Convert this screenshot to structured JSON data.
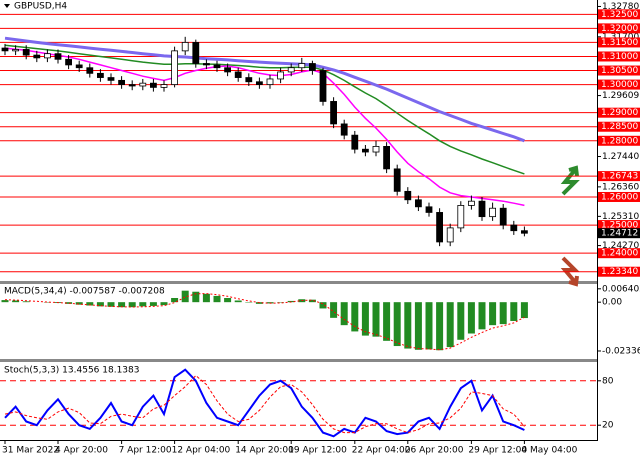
{
  "chart_data": [
    {
      "type": "candlestick",
      "title": "GBPUSD,H4",
      "categories": [
        "31 Mar 2022",
        null,
        null,
        null,
        null,
        "4 Apr 20:00",
        null,
        null,
        null,
        null,
        null,
        "7 Apr 12:00",
        null,
        null,
        null,
        null,
        "12 Apr 04:00",
        null,
        null,
        null,
        null,
        null,
        "14 Apr 20:00",
        null,
        null,
        null,
        null,
        "19 Apr 12:00",
        null,
        null,
        null,
        null,
        null,
        "22 Apr 04:00",
        null,
        null,
        null,
        null,
        "26 Apr 20:00",
        null,
        null,
        null,
        null,
        null,
        "29 Apr 12:00",
        null,
        null,
        null,
        null,
        "4 May 04:00"
      ],
      "open": [
        1.313,
        1.312,
        1.3125,
        1.3105,
        1.3095,
        1.311,
        1.309,
        1.307,
        1.306,
        1.304,
        1.3025,
        1.3015,
        1.3,
        1.2995,
        1.3005,
        1.299,
        1.3,
        1.312,
        1.315,
        1.3075,
        1.307,
        1.306,
        1.3045,
        1.3025,
        1.301,
        1.3,
        1.302,
        1.3045,
        1.306,
        1.3075,
        1.305,
        1.294,
        1.286,
        1.282,
        1.277,
        1.276,
        1.278,
        1.27,
        1.262,
        1.259,
        1.2565,
        1.2545,
        1.244,
        1.249,
        1.257,
        1.2585,
        1.253,
        1.256,
        1.25,
        1.248
      ],
      "high": [
        1.3145,
        1.314,
        1.314,
        1.312,
        1.3125,
        1.3125,
        1.3105,
        1.3085,
        1.3075,
        1.3055,
        1.304,
        1.303,
        1.3015,
        1.302,
        1.302,
        1.3015,
        1.3135,
        1.317,
        1.316,
        1.309,
        1.3085,
        1.3075,
        1.306,
        1.304,
        1.3025,
        1.3035,
        1.306,
        1.3075,
        1.3095,
        1.3085,
        1.306,
        1.2955,
        1.2875,
        1.2835,
        1.2785,
        1.28,
        1.2795,
        1.2715,
        1.2635,
        1.2605,
        1.258,
        1.256,
        1.2505,
        1.2585,
        1.2605,
        1.26,
        1.258,
        1.2575,
        1.2515,
        1.2495
      ],
      "low": [
        1.3105,
        1.3105,
        1.309,
        1.308,
        1.308,
        1.3075,
        1.3055,
        1.3045,
        1.3025,
        1.301,
        1.3,
        1.2985,
        1.298,
        1.298,
        1.2975,
        1.2975,
        1.299,
        1.3105,
        1.306,
        1.3055,
        1.3045,
        1.303,
        1.301,
        1.2995,
        1.2985,
        1.2985,
        1.3005,
        1.303,
        1.3045,
        1.3035,
        1.2925,
        1.2845,
        1.2805,
        1.2755,
        1.2745,
        1.2745,
        1.2685,
        1.2605,
        1.2575,
        1.255,
        1.253,
        1.2425,
        1.2425,
        1.2475,
        1.2555,
        1.2515,
        1.2515,
        1.2485,
        1.2465,
        1.246
      ],
      "close": [
        1.312,
        1.3125,
        1.3105,
        1.3095,
        1.311,
        1.309,
        1.307,
        1.306,
        1.304,
        1.3025,
        1.3015,
        1.3,
        1.2995,
        1.3005,
        1.299,
        1.3,
        1.312,
        1.315,
        1.3075,
        1.307,
        1.306,
        1.3045,
        1.3025,
        1.301,
        1.3,
        1.302,
        1.3045,
        1.306,
        1.3075,
        1.305,
        1.294,
        1.286,
        1.282,
        1.277,
        1.276,
        1.278,
        1.27,
        1.262,
        1.259,
        1.2565,
        1.2545,
        1.244,
        1.249,
        1.257,
        1.2585,
        1.253,
        1.256,
        1.25,
        1.248,
        1.2471
      ],
      "up_color": "#ffffff",
      "down_color": "#000000",
      "series": [
        {
          "color": "#7b68ee",
          "values": [
            1.3165,
            1.316,
            1.3155,
            1.315,
            1.3146,
            1.3142,
            1.3138,
            1.3134,
            1.313,
            1.3126,
            1.3122,
            1.3118,
            1.3114,
            1.311,
            1.3106,
            1.3102,
            1.31,
            1.3098,
            1.3095,
            1.3092,
            1.309,
            1.3088,
            1.3085,
            1.3082,
            1.308,
            1.3078,
            1.3076,
            1.3074,
            1.3072,
            1.307,
            1.3062,
            1.3052,
            1.304,
            1.3026,
            1.3012,
            1.2998,
            1.2984,
            1.2968,
            1.2952,
            1.2936,
            1.292,
            1.2904,
            1.289,
            1.2876,
            1.2862,
            1.285,
            1.2838,
            1.2826,
            1.2814,
            1.28
          ]
        },
        {
          "color": "#228b22",
          "values": [
            1.314,
            1.3136,
            1.3132,
            1.3128,
            1.3124,
            1.312,
            1.3115,
            1.311,
            1.3105,
            1.31,
            1.3095,
            1.309,
            1.3085,
            1.308,
            1.3076,
            1.3072,
            1.3072,
            1.3074,
            1.3074,
            1.3073,
            1.3072,
            1.307,
            1.3068,
            1.3065,
            1.3062,
            1.306,
            1.306,
            1.3061,
            1.3062,
            1.3062,
            1.3052,
            1.3035,
            1.3015,
            1.2992,
            1.297,
            1.295,
            1.2925,
            1.2898,
            1.2872,
            1.2848,
            1.2825,
            1.28,
            1.278,
            1.2764,
            1.275,
            1.2735,
            1.2722,
            1.2708,
            1.2695,
            1.2682
          ]
        },
        {
          "color": "#ff00ff",
          "values": [
            1.313,
            1.3126,
            1.3122,
            1.3116,
            1.311,
            1.3104,
            1.3098,
            1.309,
            1.308,
            1.307,
            1.306,
            1.305,
            1.304,
            1.303,
            1.3022,
            1.3015,
            1.3025,
            1.304,
            1.305,
            1.3058,
            1.3064,
            1.3066,
            1.306,
            1.305,
            1.304,
            1.3034,
            1.3032,
            1.3036,
            1.3045,
            1.3052,
            1.304,
            1.3005,
            1.2965,
            1.292,
            1.288,
            1.2845,
            1.2805,
            1.276,
            1.272,
            1.269,
            1.2665,
            1.2635,
            1.2615,
            1.2605,
            1.26,
            1.2595,
            1.259,
            1.2585,
            1.2578,
            1.257
          ]
        }
      ],
      "ylim": [
        1.2301,
        1.3301
      ],
      "yticks": [
        {
          "value": 1.3278,
          "label": "1.32780"
        },
        {
          "value": 1.317,
          "label": "1.31700"
        },
        {
          "value": 1.29609,
          "label": "1.29609"
        },
        {
          "value": 1.2744,
          "label": "1.27440"
        },
        {
          "value": 1.2636,
          "label": "1.26360"
        },
        {
          "value": 1.2531,
          "label": "1.25310"
        },
        {
          "value": 1.2427,
          "label": "1.24270"
        }
      ],
      "level_color": "#ff0000",
      "levels": [
        {
          "value": 1.325,
          "label": "1.32500"
        },
        {
          "value": 1.32,
          "label": "1.32000"
        },
        {
          "value": 1.315,
          "label": "1.31500"
        },
        {
          "value": 1.31,
          "label": "1.31000"
        },
        {
          "value": 1.305,
          "label": "1.30500"
        },
        {
          "value": 1.3,
          "label": "1.30000"
        },
        {
          "value": 1.29,
          "label": "1.29000"
        },
        {
          "value": 1.285,
          "label": "1.28500"
        },
        {
          "value": 1.28,
          "label": "1.28000"
        },
        {
          "value": 1.26743,
          "label": "1.26743"
        },
        {
          "value": 1.26,
          "label": "1.26000"
        },
        {
          "value": 1.25,
          "label": "1.25000"
        },
        {
          "value": 1.24,
          "label": "1.24000"
        },
        {
          "value": 1.2334,
          "label": "1.23340"
        }
      ],
      "current_price": {
        "value": 1.24712,
        "label": "1.24712"
      }
    },
    {
      "type": "macd",
      "title": "MACD(5,34,4) -0.007587 -0.007208",
      "ylim": [
        -0.0272,
        0.0087
      ],
      "yticks": [
        0.006402,
        {
          "value": 0,
          "label": "0.00"
        },
        -0.02336
      ],
      "series": [
        {
          "type": "bar",
          "color": "#228b22",
          "values": [
            0.001,
            0.0008,
            0.0004,
            0.0,
            -0.0002,
            -0.0004,
            -0.0008,
            -0.0012,
            -0.0016,
            -0.002,
            -0.0022,
            -0.0024,
            -0.0024,
            -0.002,
            -0.0018,
            -0.0014,
            0.002,
            0.0055,
            0.005,
            0.004,
            0.003,
            0.002,
            0.0008,
            -0.0002,
            -0.0008,
            -0.0006,
            -0.0002,
            0.0006,
            0.0014,
            0.0012,
            -0.003,
            -0.0075,
            -0.011,
            -0.014,
            -0.016,
            -0.0165,
            -0.0185,
            -0.021,
            -0.0222,
            -0.0228,
            -0.0226,
            -0.023,
            -0.0215,
            -0.018,
            -0.015,
            -0.013,
            -0.011,
            -0.0105,
            -0.009,
            -0.0076
          ]
        },
        {
          "type": "line",
          "color": "#ff0000",
          "dash": true,
          "values": [
            0.0012,
            0.001,
            0.0007,
            0.0004,
            0.0001,
            -0.0002,
            -0.0005,
            -0.0009,
            -0.0013,
            -0.0017,
            -0.002,
            -0.0022,
            -0.0023,
            -0.0022,
            -0.002,
            -0.0017,
            -0.0002,
            0.0025,
            0.004,
            0.0041,
            0.0036,
            0.0028,
            0.0016,
            0.0006,
            -0.0002,
            -0.0005,
            -0.0004,
            0.0001,
            0.0008,
            0.001,
            -0.0008,
            -0.0045,
            -0.0083,
            -0.0116,
            -0.0142,
            -0.0155,
            -0.0172,
            -0.0195,
            -0.0212,
            -0.0222,
            -0.0224,
            -0.0228,
            -0.022,
            -0.0195,
            -0.0168,
            -0.0145,
            -0.0124,
            -0.0113,
            -0.0099,
            -0.0072
          ]
        }
      ]
    },
    {
      "type": "stochastic",
      "title": "Stoch(5,3,3) 13.4556 18.1383",
      "ylim": [
        0,
        100
      ],
      "yticks": [
        80,
        20
      ],
      "grid_color": "#ff0000",
      "series": [
        {
          "type": "line",
          "color": "#0000ff",
          "values": [
            30,
            45,
            25,
            20,
            40,
            55,
            35,
            20,
            15,
            30,
            50,
            25,
            20,
            45,
            60,
            35,
            85,
            95,
            80,
            50,
            30,
            25,
            20,
            40,
            60,
            75,
            80,
            70,
            45,
            30,
            10,
            5,
            15,
            10,
            30,
            25,
            12,
            8,
            10,
            25,
            30,
            15,
            45,
            70,
            80,
            40,
            60,
            25,
            20,
            13.4556
          ]
        },
        {
          "type": "line",
          "color": "#ff0000",
          "dash": true,
          "values": [
            35,
            38,
            33,
            30,
            28,
            38,
            43,
            37,
            23,
            22,
            32,
            35,
            32,
            30,
            42,
            47,
            60,
            72,
            87,
            75,
            53,
            35,
            25,
            28,
            40,
            58,
            72,
            75,
            65,
            48,
            28,
            15,
            10,
            10,
            18,
            22,
            22,
            15,
            10,
            14,
            22,
            23,
            30,
            43,
            65,
            63,
            60,
            42,
            35,
            18.1383
          ]
        }
      ]
    }
  ]
}
